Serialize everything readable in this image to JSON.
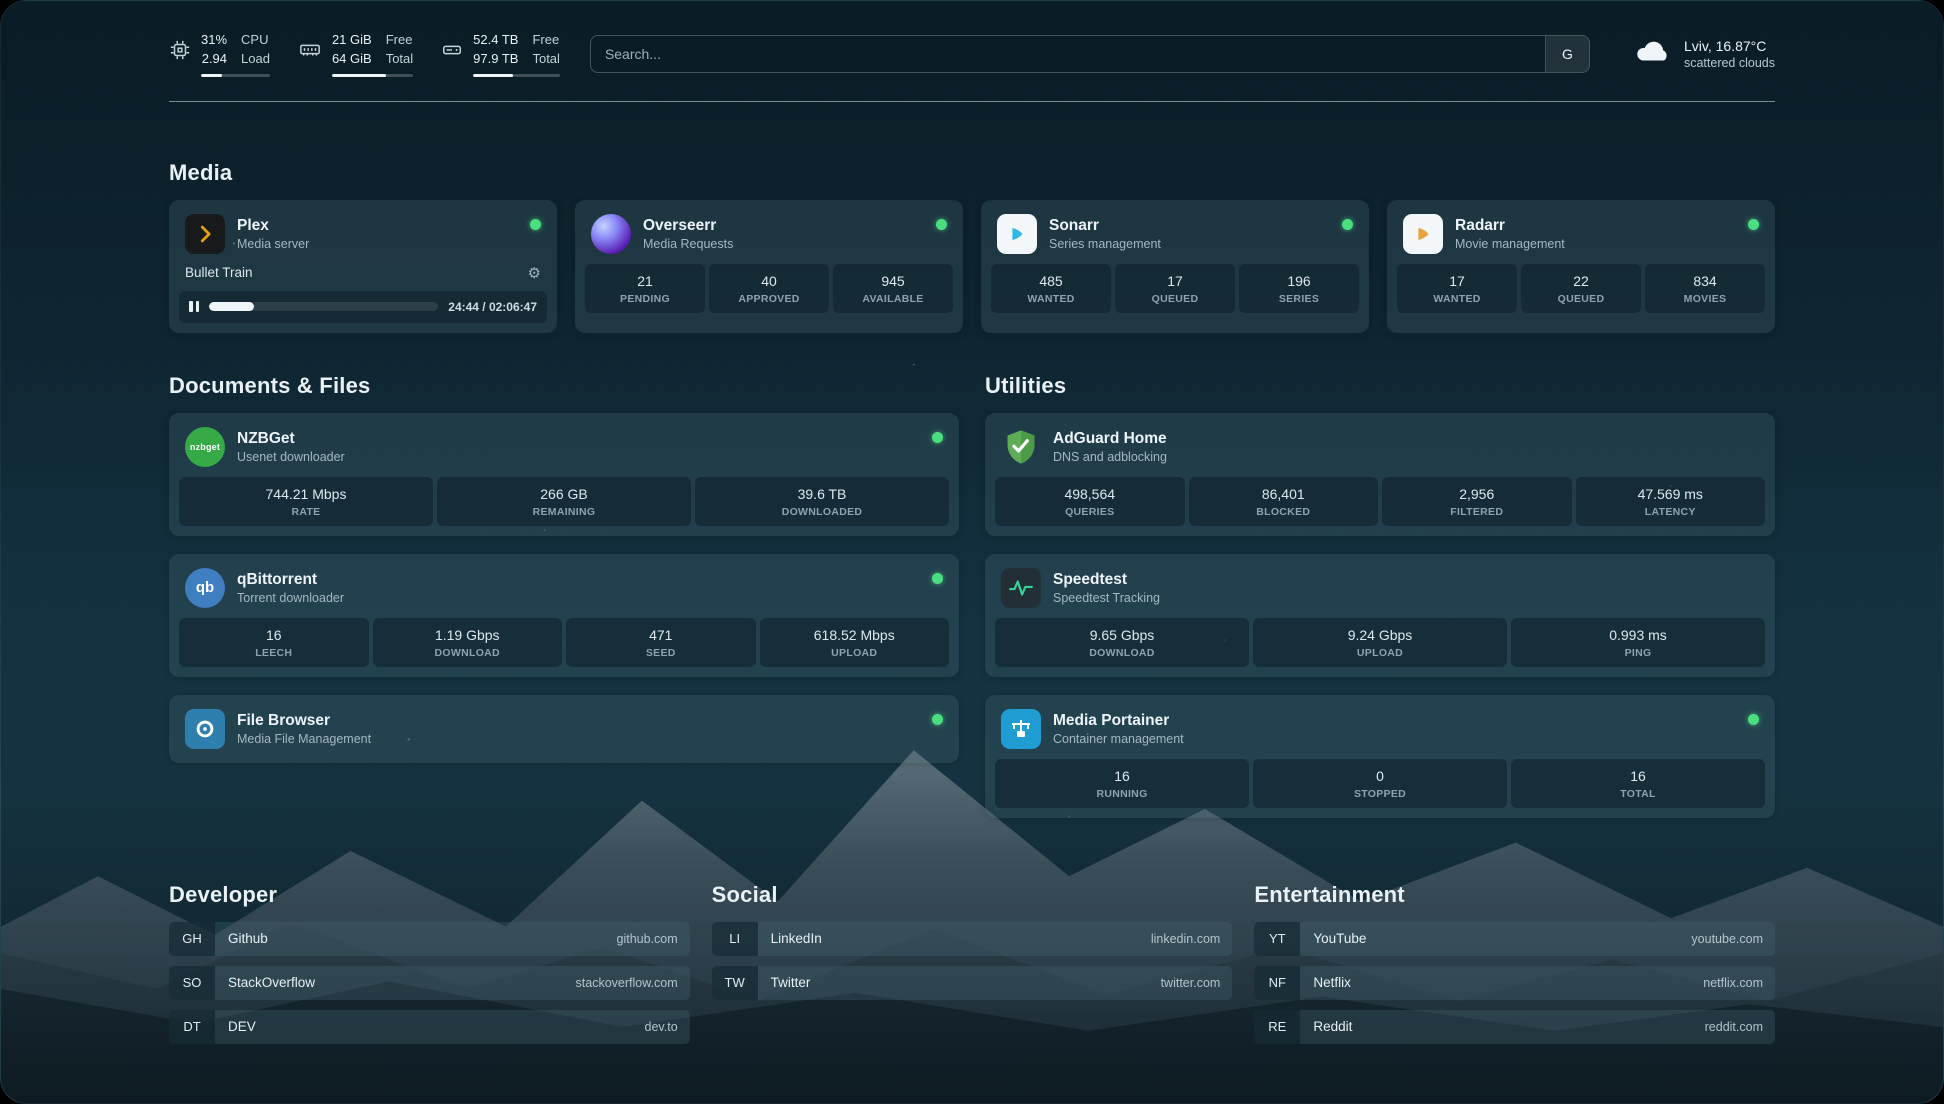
{
  "topbar": {
    "resources": [
      {
        "value1": "31%",
        "value2": "2.94",
        "label1": "CPU",
        "label2": "Load",
        "progress": 31
      },
      {
        "value1": "21 GiB",
        "value2": "64 GiB",
        "label1": "Free",
        "label2": "Total",
        "progress": 67
      },
      {
        "value1": "52.4 TB",
        "value2": "97.9 TB",
        "label1": "Free",
        "label2": "Total",
        "progress": 46
      }
    ],
    "search": {
      "placeholder": "Search...",
      "provider_label": "G"
    },
    "weather": {
      "location": "Lviv, 16.87°C",
      "condition": "scattered clouds"
    }
  },
  "sections": {
    "media": {
      "title": "Media"
    },
    "documents": {
      "title": "Documents & Files"
    },
    "utilities": {
      "title": "Utilities"
    },
    "developer": {
      "title": "Developer"
    },
    "social": {
      "title": "Social"
    },
    "entertainment": {
      "title": "Entertainment"
    }
  },
  "services": {
    "plex": {
      "title": "Plex",
      "subtitle": "Media server",
      "now_playing": "Bullet Train",
      "time": "24:44 / 02:06:47",
      "progress": 19.5
    },
    "overseerr": {
      "title": "Overseerr",
      "subtitle": "Media Requests",
      "stats": [
        {
          "value": "21",
          "label": "PENDING"
        },
        {
          "value": "40",
          "label": "APPROVED"
        },
        {
          "value": "945",
          "label": "AVAILABLE"
        }
      ]
    },
    "sonarr": {
      "title": "Sonarr",
      "subtitle": "Series management",
      "stats": [
        {
          "value": "485",
          "label": "WANTED"
        },
        {
          "value": "17",
          "label": "QUEUED"
        },
        {
          "value": "196",
          "label": "SERIES"
        }
      ]
    },
    "radarr": {
      "title": "Radarr",
      "subtitle": "Movie management",
      "stats": [
        {
          "value": "17",
          "label": "WANTED"
        },
        {
          "value": "22",
          "label": "QUEUED"
        },
        {
          "value": "834",
          "label": "MOVIES"
        }
      ]
    },
    "nzbget": {
      "title": "NZBGet",
      "subtitle": "Usenet downloader",
      "icon_text": "nzbget",
      "stats": [
        {
          "value": "744.21 Mbps",
          "label": "RATE"
        },
        {
          "value": "266 GB",
          "label": "REMAINING"
        },
        {
          "value": "39.6 TB",
          "label": "DOWNLOADED"
        }
      ]
    },
    "qbittorrent": {
      "title": "qBittorrent",
      "subtitle": "Torrent downloader",
      "icon_text": "qb",
      "stats": [
        {
          "value": "16",
          "label": "LEECH"
        },
        {
          "value": "1.19 Gbps",
          "label": "DOWNLOAD"
        },
        {
          "value": "471",
          "label": "SEED"
        },
        {
          "value": "618.52 Mbps",
          "label": "UPLOAD"
        }
      ]
    },
    "filebrowser": {
      "title": "File Browser",
      "subtitle": "Media File Management"
    },
    "adguard": {
      "title": "AdGuard Home",
      "subtitle": "DNS and adblocking",
      "stats": [
        {
          "value": "498,564",
          "label": "QUERIES"
        },
        {
          "value": "86,401",
          "label": "BLOCKED"
        },
        {
          "value": "2,956",
          "label": "FILTERED"
        },
        {
          "value": "47.569 ms",
          "label": "LATENCY"
        }
      ]
    },
    "speedtest": {
      "title": "Speedtest",
      "subtitle": "Speedtest Tracking",
      "stats": [
        {
          "value": "9.65 Gbps",
          "label": "DOWNLOAD"
        },
        {
          "value": "9.24 Gbps",
          "label": "UPLOAD"
        },
        {
          "value": "0.993 ms",
          "label": "PING"
        }
      ]
    },
    "portainer": {
      "title": "Media Portainer",
      "subtitle": "Container management",
      "stats": [
        {
          "value": "16",
          "label": "RUNNING"
        },
        {
          "value": "0",
          "label": "STOPPED"
        },
        {
          "value": "16",
          "label": "TOTAL"
        }
      ]
    }
  },
  "bookmarks": {
    "developer": [
      {
        "abbr": "GH",
        "name": "Github",
        "url": "github.com"
      },
      {
        "abbr": "SO",
        "name": "StackOverflow",
        "url": "stackoverflow.com"
      },
      {
        "abbr": "DT",
        "name": "DEV",
        "url": "dev.to"
      }
    ],
    "social": [
      {
        "abbr": "LI",
        "name": "LinkedIn",
        "url": "linkedin.com"
      },
      {
        "abbr": "TW",
        "name": "Twitter",
        "url": "twitter.com"
      }
    ],
    "entertainment": [
      {
        "abbr": "YT",
        "name": "YouTube",
        "url": "youtube.com"
      },
      {
        "abbr": "NF",
        "name": "Netflix",
        "url": "netflix.com"
      },
      {
        "abbr": "RE",
        "name": "Reddit",
        "url": "reddit.com"
      }
    ]
  },
  "colors": {
    "status_online": "#4ade80",
    "plex_gold": "#e5a00d",
    "adguard_green": "#5fae57"
  }
}
